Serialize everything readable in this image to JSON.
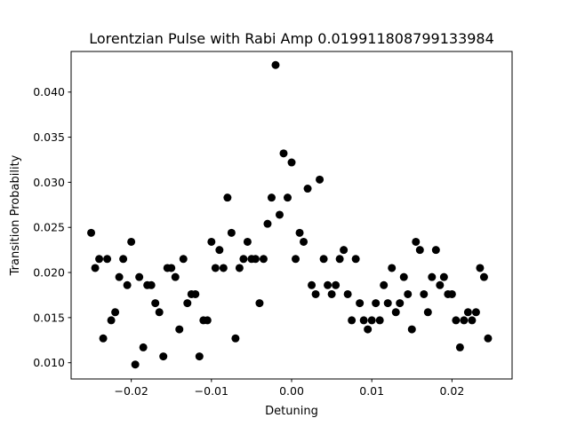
{
  "chart_data": {
    "type": "scatter",
    "title": "Lorentzian Pulse with Rabi Amp 0.019911808799133984",
    "xlabel": "Detuning",
    "ylabel": "Transition Probability",
    "xlim": [
      -0.0275,
      0.0275
    ],
    "ylim": [
      0.0082,
      0.0445
    ],
    "xticks": [
      -0.02,
      -0.01,
      0.0,
      0.01,
      0.02
    ],
    "xtick_labels": [
      "−0.02",
      "−0.01",
      "0.00",
      "0.01",
      "0.02"
    ],
    "yticks": [
      0.01,
      0.015,
      0.02,
      0.025,
      0.03,
      0.035,
      0.04
    ],
    "ytick_labels": [
      "0.010",
      "0.015",
      "0.020",
      "0.025",
      "0.030",
      "0.035",
      "0.040"
    ],
    "grid": false,
    "legend": "none",
    "marker_color": "#000000",
    "points": [
      [
        -0.025,
        0.0244
      ],
      [
        -0.0245,
        0.0205
      ],
      [
        -0.024,
        0.0215
      ],
      [
        -0.0235,
        0.0127
      ],
      [
        -0.023,
        0.0215
      ],
      [
        -0.0225,
        0.0147
      ],
      [
        -0.022,
        0.0156
      ],
      [
        -0.0215,
        0.0195
      ],
      [
        -0.021,
        0.0215
      ],
      [
        -0.0205,
        0.0186
      ],
      [
        -0.02,
        0.0234
      ],
      [
        -0.0195,
        0.0098
      ],
      [
        -0.019,
        0.0195
      ],
      [
        -0.0185,
        0.0117
      ],
      [
        -0.018,
        0.0186
      ],
      [
        -0.0175,
        0.0186
      ],
      [
        -0.017,
        0.0166
      ],
      [
        -0.0165,
        0.0156
      ],
      [
        -0.016,
        0.0107
      ],
      [
        -0.0155,
        0.0205
      ],
      [
        -0.015,
        0.0205
      ],
      [
        -0.0145,
        0.0195
      ],
      [
        -0.014,
        0.0137
      ],
      [
        -0.0135,
        0.0215
      ],
      [
        -0.013,
        0.0166
      ],
      [
        -0.0125,
        0.0176
      ],
      [
        -0.012,
        0.0176
      ],
      [
        -0.0115,
        0.0107
      ],
      [
        -0.011,
        0.0147
      ],
      [
        -0.0105,
        0.0147
      ],
      [
        -0.01,
        0.0234
      ],
      [
        -0.0095,
        0.0205
      ],
      [
        -0.009,
        0.0225
      ],
      [
        -0.0085,
        0.0205
      ],
      [
        -0.008,
        0.0283
      ],
      [
        -0.0075,
        0.0244
      ],
      [
        -0.007,
        0.0127
      ],
      [
        -0.0065,
        0.0205
      ],
      [
        -0.006,
        0.0215
      ],
      [
        -0.0055,
        0.0234
      ],
      [
        -0.005,
        0.0215
      ],
      [
        -0.0045,
        0.0215
      ],
      [
        -0.004,
        0.0166
      ],
      [
        -0.0035,
        0.0215
      ],
      [
        -0.003,
        0.0254
      ],
      [
        -0.0025,
        0.0283
      ],
      [
        -0.002,
        0.043
      ],
      [
        -0.0015,
        0.0264
      ],
      [
        -0.001,
        0.0332
      ],
      [
        -0.0005,
        0.0283
      ],
      [
        0.0,
        0.0322
      ],
      [
        0.0005,
        0.0215
      ],
      [
        0.001,
        0.0244
      ],
      [
        0.0015,
        0.0234
      ],
      [
        0.002,
        0.0293
      ],
      [
        0.0025,
        0.0186
      ],
      [
        0.003,
        0.0176
      ],
      [
        0.0035,
        0.0303
      ],
      [
        0.004,
        0.0215
      ],
      [
        0.0045,
        0.0186
      ],
      [
        0.005,
        0.0176
      ],
      [
        0.0055,
        0.0186
      ],
      [
        0.006,
        0.0215
      ],
      [
        0.0065,
        0.0225
      ],
      [
        0.007,
        0.0176
      ],
      [
        0.0075,
        0.0147
      ],
      [
        0.008,
        0.0215
      ],
      [
        0.0085,
        0.0166
      ],
      [
        0.009,
        0.0147
      ],
      [
        0.0095,
        0.0137
      ],
      [
        0.01,
        0.0147
      ],
      [
        0.0105,
        0.0166
      ],
      [
        0.011,
        0.0147
      ],
      [
        0.0115,
        0.0186
      ],
      [
        0.012,
        0.0166
      ],
      [
        0.0125,
        0.0205
      ],
      [
        0.013,
        0.0156
      ],
      [
        0.0135,
        0.0166
      ],
      [
        0.014,
        0.0195
      ],
      [
        0.0145,
        0.0176
      ],
      [
        0.015,
        0.0137
      ],
      [
        0.0155,
        0.0234
      ],
      [
        0.016,
        0.0225
      ],
      [
        0.0165,
        0.0176
      ],
      [
        0.017,
        0.0156
      ],
      [
        0.0175,
        0.0195
      ],
      [
        0.018,
        0.0225
      ],
      [
        0.0185,
        0.0186
      ],
      [
        0.019,
        0.0195
      ],
      [
        0.0195,
        0.0176
      ],
      [
        0.02,
        0.0176
      ],
      [
        0.0205,
        0.0147
      ],
      [
        0.021,
        0.0117
      ],
      [
        0.0215,
        0.0147
      ],
      [
        0.022,
        0.0156
      ],
      [
        0.0225,
        0.0147
      ],
      [
        0.023,
        0.0156
      ],
      [
        0.0235,
        0.0205
      ],
      [
        0.024,
        0.0195
      ],
      [
        0.0245,
        0.0127
      ]
    ]
  }
}
